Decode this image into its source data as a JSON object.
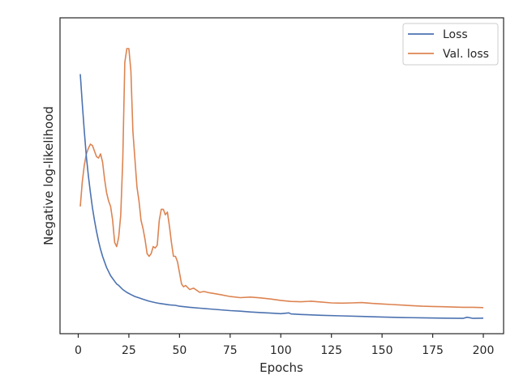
{
  "chart_data": {
    "type": "line",
    "title": "",
    "xlabel": "Epochs",
    "ylabel": "Negative log-likelihood",
    "xlim": [
      -9,
      210
    ],
    "xticks": [
      0,
      25,
      50,
      75,
      100,
      125,
      150,
      175,
      200
    ],
    "ylim": [
      0,
      100
    ],
    "yscale_note": "y-axis has no tick labels; values are relative (0-100) estimated from the plot",
    "grid": false,
    "legend_position": "top-right",
    "series": [
      {
        "name": "Loss",
        "color": "#4c72b0",
        "x": [
          1,
          2,
          3,
          4,
          5,
          6,
          7,
          8,
          9,
          10,
          11,
          12,
          13,
          14,
          15,
          16,
          17,
          18,
          19,
          20,
          22,
          24,
          26,
          28,
          30,
          32,
          35,
          38,
          40,
          42,
          45,
          48,
          50,
          55,
          60,
          65,
          70,
          75,
          80,
          85,
          90,
          95,
          100,
          104,
          105,
          110,
          120,
          130,
          140,
          150,
          160,
          170,
          180,
          190,
          192,
          195,
          200
        ],
        "y": [
          90.8,
          80,
          70,
          61,
          54,
          48,
          42.5,
          38,
          34,
          30.5,
          27.5,
          25,
          23,
          21,
          19.5,
          18,
          17,
          16,
          15,
          14.5,
          13,
          12,
          11.2,
          10.5,
          10,
          9.5,
          8.8,
          8.3,
          8,
          7.8,
          7.5,
          7.3,
          7,
          6.6,
          6.3,
          6,
          5.7,
          5.4,
          5.2,
          4.9,
          4.7,
          4.5,
          4.3,
          4.6,
          4.2,
          4.0,
          3.7,
          3.5,
          3.3,
          3.1,
          2.9,
          2.8,
          2.7,
          2.6,
          3.0,
          2.6,
          2.7
        ]
      },
      {
        "name": "Val. loss",
        "color": "#dd8452",
        "x": [
          1,
          2,
          3,
          4,
          5,
          6,
          7,
          8,
          9,
          10,
          11,
          12,
          13,
          14,
          15,
          16,
          17,
          18,
          19,
          20,
          21,
          22,
          23,
          24,
          25,
          26,
          27,
          28,
          29,
          30,
          31,
          32,
          33,
          34,
          35,
          36,
          37,
          38,
          39,
          40,
          41,
          42,
          43,
          44,
          45,
          46,
          47,
          48,
          49,
          50,
          51,
          52,
          53,
          55,
          57,
          60,
          62,
          65,
          70,
          75,
          80,
          85,
          90,
          95,
          100,
          105,
          110,
          115,
          120,
          125,
          130,
          135,
          140,
          145,
          150,
          155,
          160,
          165,
          170,
          175,
          180,
          185,
          190,
          195,
          200
        ],
        "y": [
          43,
          52,
          58,
          62,
          64,
          65.5,
          65,
          63,
          61,
          60.5,
          62,
          59,
          53,
          48,
          45,
          43,
          38,
          30,
          28.5,
          32,
          40,
          60,
          95,
          100,
          100,
          92,
          70,
          60,
          50,
          45,
          38,
          35,
          31,
          26,
          25,
          26,
          28.5,
          28,
          29,
          38,
          42,
          42,
          40,
          41,
          36,
          30,
          25,
          25,
          23,
          19,
          15,
          14,
          14.5,
          13,
          13.5,
          12,
          12.3,
          11.8,
          11.2,
          10.5,
          10.1,
          10.3,
          10,
          9.6,
          9.1,
          8.7,
          8.6,
          8.8,
          8.5,
          8.2,
          8.1,
          8.2,
          8.3,
          8.0,
          7.8,
          7.6,
          7.4,
          7.2,
          7.0,
          6.9,
          6.8,
          6.7,
          6.6,
          6.6,
          6.5
        ]
      }
    ]
  }
}
